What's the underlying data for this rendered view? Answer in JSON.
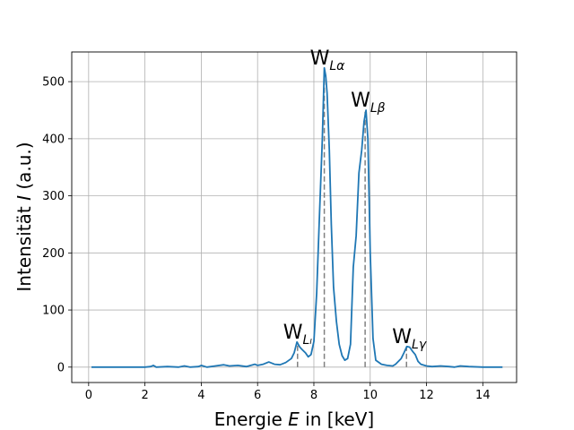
{
  "chart_data": {
    "type": "line",
    "title": "",
    "xlabel": {
      "pre": "Energie ",
      "var": "E",
      "post": " in [keV]"
    },
    "ylabel": {
      "pre": "Intensität ",
      "var": "I",
      "post": " (a.u.)"
    },
    "xlim": [
      -0.6,
      15.2
    ],
    "ylim": [
      -27,
      552
    ],
    "xticks": [
      0,
      2,
      4,
      6,
      8,
      10,
      12,
      14
    ],
    "yticks": [
      0,
      100,
      200,
      300,
      400,
      500
    ],
    "grid": true,
    "line_color": "#1f77b4",
    "marker_color": "#808080",
    "series": [
      {
        "points": [
          [
            0.1,
            0
          ],
          [
            0.5,
            0
          ],
          [
            1.0,
            0
          ],
          [
            1.5,
            0
          ],
          [
            2.0,
            0
          ],
          [
            2.2,
            1
          ],
          [
            2.3,
            3
          ],
          [
            2.4,
            0
          ],
          [
            2.8,
            1
          ],
          [
            3.2,
            0
          ],
          [
            3.4,
            2
          ],
          [
            3.6,
            0
          ],
          [
            3.9,
            1
          ],
          [
            4.0,
            3
          ],
          [
            4.2,
            0
          ],
          [
            4.5,
            2
          ],
          [
            4.8,
            4
          ],
          [
            5.0,
            2
          ],
          [
            5.3,
            3
          ],
          [
            5.6,
            1
          ],
          [
            5.9,
            5
          ],
          [
            6.0,
            3
          ],
          [
            6.2,
            5
          ],
          [
            6.4,
            9
          ],
          [
            6.6,
            5
          ],
          [
            6.8,
            4
          ],
          [
            7.0,
            8
          ],
          [
            7.2,
            15
          ],
          [
            7.3,
            25
          ],
          [
            7.4,
            44
          ],
          [
            7.5,
            35
          ],
          [
            7.6,
            30
          ],
          [
            7.7,
            25
          ],
          [
            7.8,
            18
          ],
          [
            7.9,
            22
          ],
          [
            8.0,
            45
          ],
          [
            8.1,
            130
          ],
          [
            8.2,
            270
          ],
          [
            8.3,
            400
          ],
          [
            8.37,
            524
          ],
          [
            8.42,
            510
          ],
          [
            8.47,
            480
          ],
          [
            8.55,
            380
          ],
          [
            8.62,
            250
          ],
          [
            8.7,
            140
          ],
          [
            8.8,
            80
          ],
          [
            8.9,
            40
          ],
          [
            9.0,
            20
          ],
          [
            9.1,
            12
          ],
          [
            9.2,
            15
          ],
          [
            9.3,
            40
          ],
          [
            9.4,
            175
          ],
          [
            9.5,
            230
          ],
          [
            9.6,
            340
          ],
          [
            9.7,
            380
          ],
          [
            9.78,
            430
          ],
          [
            9.85,
            450
          ],
          [
            9.92,
            400
          ],
          [
            10.0,
            200
          ],
          [
            10.1,
            50
          ],
          [
            10.2,
            12
          ],
          [
            10.4,
            5
          ],
          [
            10.6,
            3
          ],
          [
            10.8,
            2
          ],
          [
            10.9,
            5
          ],
          [
            11.0,
            10
          ],
          [
            11.1,
            15
          ],
          [
            11.2,
            25
          ],
          [
            11.3,
            36
          ],
          [
            11.4,
            35
          ],
          [
            11.5,
            28
          ],
          [
            11.6,
            22
          ],
          [
            11.7,
            10
          ],
          [
            11.8,
            5
          ],
          [
            12.0,
            2
          ],
          [
            12.2,
            1
          ],
          [
            12.5,
            2
          ],
          [
            12.8,
            1
          ],
          [
            13.0,
            0
          ],
          [
            13.2,
            2
          ],
          [
            13.5,
            1
          ],
          [
            14.0,
            0
          ],
          [
            14.5,
            0
          ],
          [
            14.7,
            0
          ]
        ]
      }
    ],
    "markers": [
      {
        "x": 7.42,
        "y": 44,
        "base": "W",
        "sub": "Lₗ"
      },
      {
        "x": 8.37,
        "y": 524,
        "base": "W",
        "sub": "Lα"
      },
      {
        "x": 9.82,
        "y": 450,
        "base": "W",
        "sub": "Lβ"
      },
      {
        "x": 11.29,
        "y": 36,
        "base": "W",
        "sub": "Lγ"
      }
    ]
  }
}
